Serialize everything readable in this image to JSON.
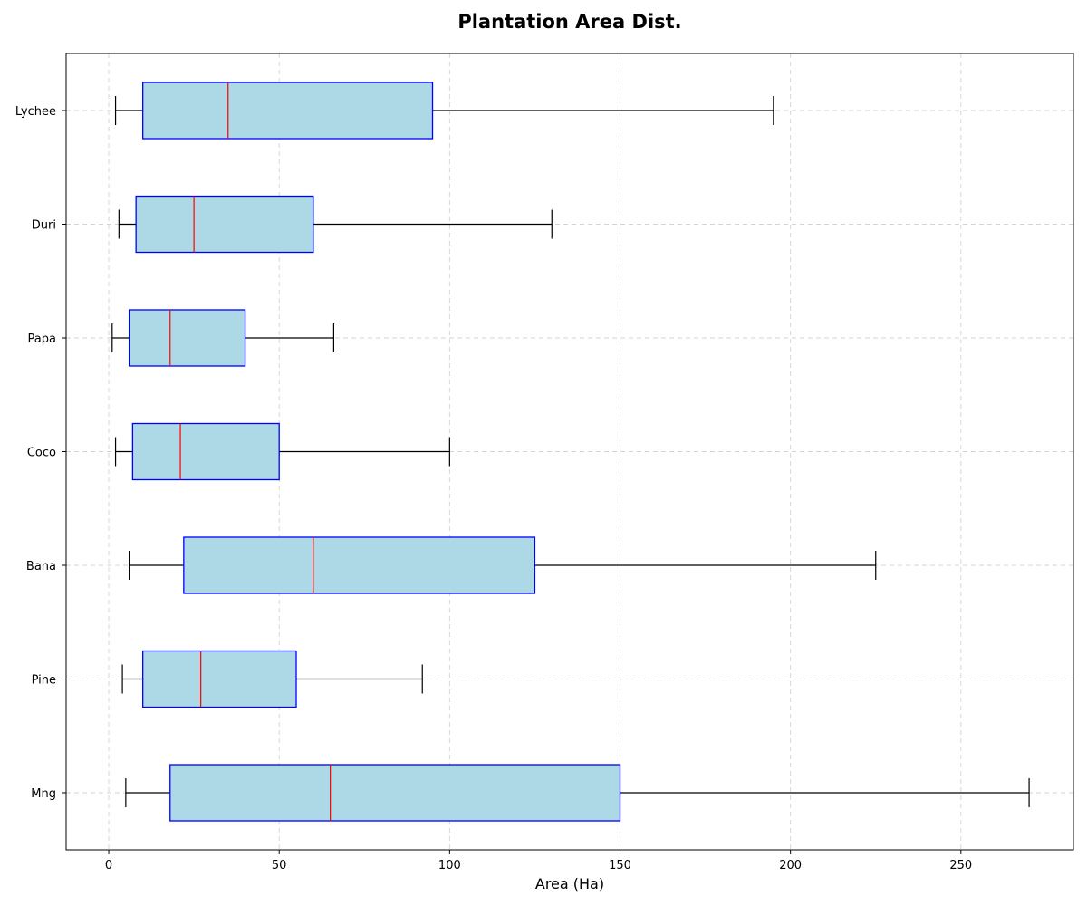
{
  "chart_data": {
    "type": "boxplot",
    "orientation": "horizontal",
    "title": "Plantation Area Dist.",
    "xlabel": "Area (Ha)",
    "ylabel": "",
    "xlim": [
      -12.5,
      283
    ],
    "xticks": [
      0,
      50,
      100,
      150,
      200,
      250
    ],
    "grid": true,
    "legend": "none",
    "categories": [
      "Mng",
      "Pine",
      "Bana",
      "Coco",
      "Papa",
      "Duri",
      "Lychee"
    ],
    "boxes": [
      {
        "label": "Mng",
        "whisker_low": 5,
        "q1": 18,
        "median": 65,
        "q3": 150,
        "whisker_high": 270
      },
      {
        "label": "Pine",
        "whisker_low": 4,
        "q1": 10,
        "median": 27,
        "q3": 55,
        "whisker_high": 92
      },
      {
        "label": "Bana",
        "whisker_low": 6,
        "q1": 22,
        "median": 60,
        "q3": 125,
        "whisker_high": 225
      },
      {
        "label": "Coco",
        "whisker_low": 2,
        "q1": 7,
        "median": 21,
        "q3": 50,
        "whisker_high": 100
      },
      {
        "label": "Papa",
        "whisker_low": 1,
        "q1": 6,
        "median": 18,
        "q3": 40,
        "whisker_high": 66
      },
      {
        "label": "Duri",
        "whisker_low": 3,
        "q1": 8,
        "median": 25,
        "q3": 60,
        "whisker_high": 130
      },
      {
        "label": "Lychee",
        "whisker_low": 2,
        "q1": 10,
        "median": 35,
        "q3": 95,
        "whisker_high": 195
      }
    ],
    "colors": {
      "box_fill": "#add8e6",
      "box_edge": "#0000ff",
      "median": "#ff0000",
      "whisker": "#000000",
      "grid": "#d3d3d3"
    }
  }
}
